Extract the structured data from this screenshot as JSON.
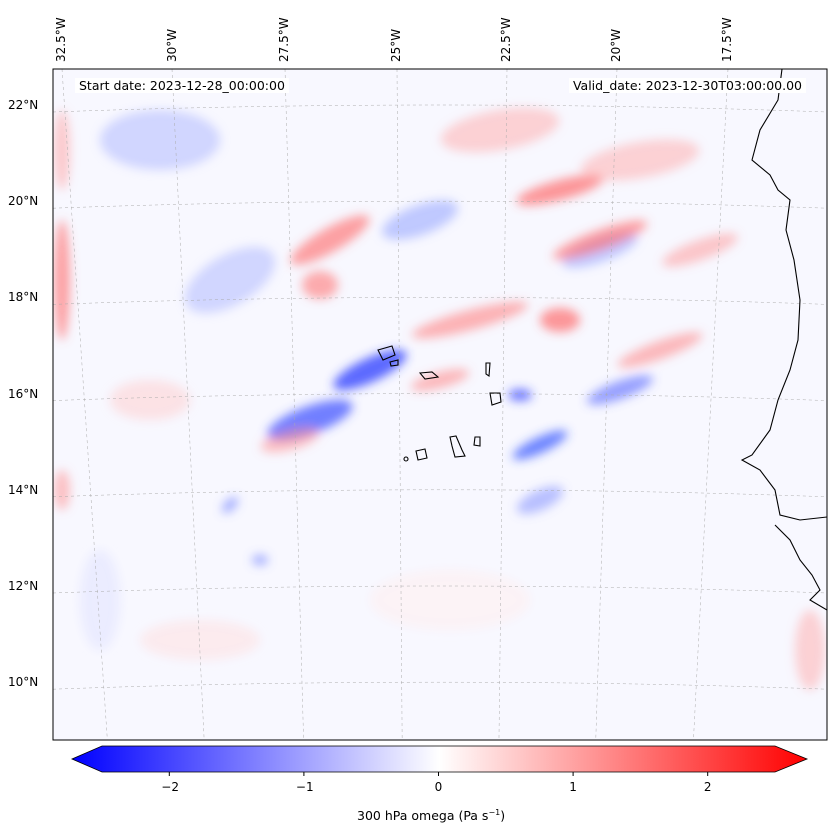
{
  "annotations": {
    "start_date": "Start date: 2023-12-28_00:00:00",
    "valid_date": "Valid_date: 2023-12-30T03:00:00.00"
  },
  "axes": {
    "lon_labels": [
      "32.5°W",
      "30°W",
      "27.5°W",
      "25°W",
      "22.5°W",
      "20°W",
      "17.5°W"
    ],
    "lat_labels": [
      "22°N",
      "20°N",
      "18°N",
      "16°N",
      "14°N",
      "12°N",
      "10°N"
    ]
  },
  "colorbar": {
    "label": "300 hPa omega (Pa s",
    "label_sup": "−1",
    "label_end": ")",
    "range": [
      -2.5,
      2.5
    ],
    "ticks": [
      "−2",
      "−1",
      "0",
      "1",
      "2"
    ],
    "tick_values": [
      -2,
      -1,
      0,
      1,
      2
    ],
    "cmap_low": "#0000ff",
    "cmap_mid": "#ffffff",
    "cmap_high": "#ff0000",
    "extend": "both"
  }
}
